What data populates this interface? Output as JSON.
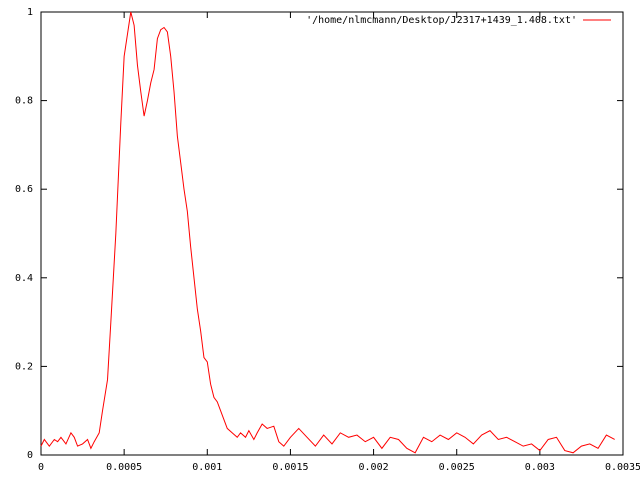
{
  "chart_data": {
    "type": "line",
    "x": [
      0,
      2e-05,
      5e-05,
      8e-05,
      0.0001,
      0.00012,
      0.00015,
      0.00018,
      0.0002,
      0.00022,
      0.00025,
      0.00028,
      0.0003,
      0.00032,
      0.00035,
      0.00037,
      0.0004,
      0.00042,
      0.00045,
      0.00048,
      0.0005,
      0.00052,
      0.00054,
      0.00056,
      0.00058,
      0.0006,
      0.00062,
      0.00064,
      0.00066,
      0.00068,
      0.0007,
      0.00072,
      0.00074,
      0.00076,
      0.00078,
      0.0008,
      0.00082,
      0.00084,
      0.00086,
      0.00088,
      0.0009,
      0.00092,
      0.00094,
      0.00096,
      0.00098,
      0.001,
      0.00102,
      0.00104,
      0.00106,
      0.00108,
      0.0011,
      0.00112,
      0.00115,
      0.00118,
      0.0012,
      0.00123,
      0.00125,
      0.00128,
      0.0013,
      0.00133,
      0.00136,
      0.0014,
      0.00143,
      0.00146,
      0.0015,
      0.00155,
      0.0016,
      0.00165,
      0.0017,
      0.00175,
      0.0018,
      0.00185,
      0.0019,
      0.00195,
      0.002,
      0.00205,
      0.0021,
      0.00215,
      0.0022,
      0.00225,
      0.0023,
      0.00235,
      0.0024,
      0.00245,
      0.0025,
      0.00255,
      0.0026,
      0.00265,
      0.0027,
      0.00275,
      0.0028,
      0.00285,
      0.0029,
      0.00295,
      0.003,
      0.00305,
      0.0031,
      0.00315,
      0.0032,
      0.00325,
      0.0033,
      0.00335,
      0.0034,
      0.00345
    ],
    "series": [
      {
        "name": "'/home/nlmcmann/Desktop/J2317+1439_1.408.txt'",
        "color": "#ff0000",
        "values": [
          0.02,
          0.035,
          0.02,
          0.035,
          0.03,
          0.04,
          0.025,
          0.05,
          0.04,
          0.02,
          0.025,
          0.035,
          0.015,
          0.03,
          0.05,
          0.1,
          0.17,
          0.3,
          0.5,
          0.75,
          0.9,
          0.95,
          1.0,
          0.97,
          0.88,
          0.82,
          0.765,
          0.8,
          0.84,
          0.87,
          0.94,
          0.96,
          0.965,
          0.955,
          0.9,
          0.82,
          0.72,
          0.66,
          0.6,
          0.55,
          0.47,
          0.4,
          0.33,
          0.28,
          0.22,
          0.21,
          0.16,
          0.13,
          0.12,
          0.1,
          0.08,
          0.06,
          0.05,
          0.04,
          0.05,
          0.04,
          0.055,
          0.035,
          0.05,
          0.07,
          0.06,
          0.065,
          0.03,
          0.02,
          0.04,
          0.06,
          0.04,
          0.02,
          0.045,
          0.025,
          0.05,
          0.04,
          0.045,
          0.03,
          0.04,
          0.015,
          0.04,
          0.035,
          0.015,
          0.005,
          0.04,
          0.03,
          0.045,
          0.035,
          0.05,
          0.04,
          0.025,
          0.045,
          0.055,
          0.035,
          0.04,
          0.03,
          0.02,
          0.025,
          0.01,
          0.035,
          0.04,
          0.01,
          0.005,
          0.02,
          0.025,
          0.015,
          0.045,
          0.035
        ]
      }
    ],
    "xlim": [
      0,
      0.0035
    ],
    "xticks": [
      0,
      0.0005,
      0.001,
      0.0015,
      0.002,
      0.0025,
      0.003,
      0.0035
    ],
    "ylim": [
      0,
      1
    ],
    "yticks": [
      0,
      0.2,
      0.4,
      0.6,
      0.8,
      1
    ],
    "legend": "top-right"
  }
}
